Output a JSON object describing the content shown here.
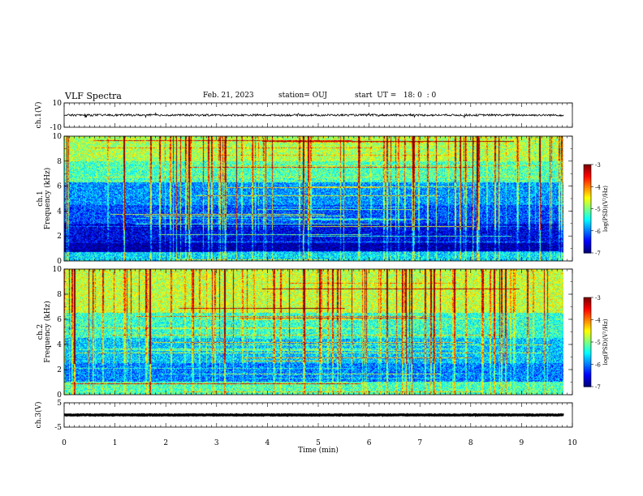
{
  "header": {
    "title": "VLF Spectra",
    "date": "Feb. 21, 2023",
    "station": "station= OUJ",
    "start_ut": "start  UT =   18: 0  : 0"
  },
  "chart_data": [
    {
      "type": "line",
      "panel": "ch1-waveform",
      "ylabel": "ch.1(V)",
      "ylim": [
        -10,
        10
      ],
      "yticks": [
        "10",
        "-10"
      ],
      "x_range_min": [
        0,
        9.83
      ],
      "baseline_value": 0,
      "series_color": "#000000"
    },
    {
      "type": "heatmap",
      "panel": "ch1-spectrogram",
      "ylabel_line1": "ch.1",
      "ylabel_line2": "Frequency (kHz)",
      "ylim": [
        0,
        10
      ],
      "yticks": [
        "0",
        "2",
        "4",
        "6",
        "8",
        "10"
      ],
      "x_range_min": [
        0,
        9.83
      ],
      "colorbar": {
        "label": "log(PSD)(V²/Hz)",
        "range": [
          -7,
          -3
        ],
        "ticks": [
          "-3",
          "-4",
          "-5",
          "-6",
          "-7"
        ]
      },
      "bands": [
        {
          "f_khz": [
            0,
            0.7
          ],
          "value": -5.6
        },
        {
          "f_khz": [
            0.7,
            1.4
          ],
          "value": -6.9
        },
        {
          "f_khz": [
            1.4,
            3.0
          ],
          "value": -6.6
        },
        {
          "f_khz": [
            3.0,
            4.5
          ],
          "value": -6.2
        },
        {
          "f_khz": [
            4.5,
            6.3
          ],
          "value": -5.9
        },
        {
          "f_khz": [
            6.3,
            8.0
          ],
          "value": -5.2
        },
        {
          "f_khz": [
            8.0,
            10
          ],
          "value": -4.8
        }
      ]
    },
    {
      "type": "heatmap",
      "panel": "ch2-spectrogram",
      "ylabel_line1": "ch.2",
      "ylabel_line2": "Frequency (kHz)",
      "ylim": [
        0,
        10
      ],
      "yticks": [
        "0",
        "2",
        "4",
        "6",
        "8",
        "10"
      ],
      "x_range_min": [
        0,
        9.83
      ],
      "colorbar": {
        "label": "log(PSD)(V²/Hz)",
        "range": [
          -7,
          -3
        ],
        "ticks": [
          "-3",
          "-4",
          "-5",
          "-6",
          "-7"
        ]
      },
      "bands": [
        {
          "f_khz": [
            0,
            1.0
          ],
          "value": -5.2
        },
        {
          "f_khz": [
            1.0,
            2.5
          ],
          "value": -6.0
        },
        {
          "f_khz": [
            2.5,
            4.5
          ],
          "value": -5.7
        },
        {
          "f_khz": [
            4.5,
            6.5
          ],
          "value": -5.3
        },
        {
          "f_khz": [
            6.5,
            10
          ],
          "value": -4.7
        }
      ]
    },
    {
      "type": "line",
      "panel": "ch3-waveform",
      "ylabel": "ch.3(V)",
      "ylim": [
        -5,
        5
      ],
      "yticks": [
        "5",
        "-5"
      ],
      "x_range_min": [
        0,
        9.83
      ],
      "baseline_value": 0,
      "series_color": "#000000"
    }
  ],
  "x_axis": {
    "label": "Time  (min)",
    "range": [
      0,
      10
    ],
    "ticks": [
      "0",
      "1",
      "2",
      "3",
      "4",
      "5",
      "6",
      "7",
      "8",
      "9",
      "10"
    ]
  }
}
